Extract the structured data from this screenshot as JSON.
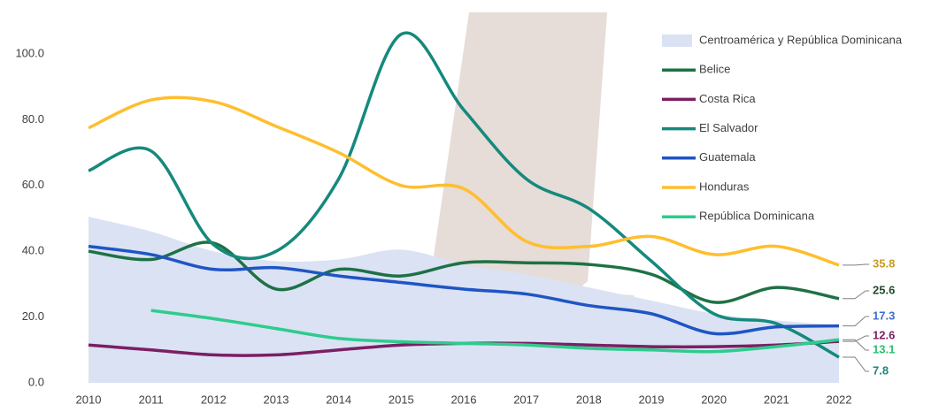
{
  "chart_data": {
    "type": "line",
    "categories": [
      "2010",
      "2011",
      "2012",
      "2013",
      "2014",
      "2015",
      "2016",
      "2017",
      "2018",
      "2019",
      "2020",
      "2021",
      "2022"
    ],
    "ylim": [
      0,
      100
    ],
    "yticks": [
      {
        "value": 0,
        "label": "0.0"
      },
      {
        "value": 20,
        "label": "20.0"
      },
      {
        "value": 40,
        "label": "40.0"
      },
      {
        "value": 60,
        "label": "60.0"
      },
      {
        "value": 80,
        "label": "80.0"
      },
      {
        "value": 100,
        "label": "100.0"
      }
    ],
    "legend": "top-right",
    "series": [
      {
        "name": "Centroamérica y República Dominicana",
        "kind": "area",
        "color": "#dae2f4",
        "values": [
          50.5,
          46,
          40,
          37,
          37.5,
          40.5,
          36,
          33,
          29,
          25,
          21,
          19,
          17.5
        ]
      },
      {
        "name": "Belice",
        "color": "#1e7145",
        "label_color": "#1e4d2b",
        "values": [
          40,
          37.5,
          42.5,
          28.5,
          34.5,
          32.5,
          36.5,
          36.5,
          36,
          33,
          24.5,
          29,
          25.6
        ]
      },
      {
        "name": "Costa Rica",
        "color": "#7b1f63",
        "label_color": "#7b1f63",
        "values": [
          11.5,
          10,
          8.5,
          8.5,
          10,
          11.5,
          12,
          12,
          11.5,
          11,
          11,
          11.5,
          12.6
        ]
      },
      {
        "name": "El Salvador",
        "color": "#15897c",
        "label_color": "#15897c",
        "values": [
          64.5,
          70.5,
          42,
          40,
          62,
          106,
          83,
          62,
          53,
          37,
          21,
          18,
          7.8
        ]
      },
      {
        "name": "Guatemala",
        "color": "#1f55c4",
        "label_color": "#3b6fd1",
        "values": [
          41.5,
          39,
          34.5,
          35,
          32.5,
          30.5,
          28.5,
          27,
          23.5,
          21,
          15,
          17,
          17.3
        ]
      },
      {
        "name": "Honduras",
        "color": "#ffbe2e",
        "label_color": "#c89b20",
        "values": [
          77.5,
          86,
          85.5,
          78,
          70,
          60,
          59,
          43,
          41.5,
          44.5,
          39,
          41.5,
          35.8
        ]
      },
      {
        "name": "República Dominicana",
        "color": "#2ecc8c",
        "label_color": "#2bbf6f",
        "values": [
          null,
          22,
          19.5,
          16.5,
          13.5,
          12.5,
          12,
          11.5,
          10.5,
          10,
          9.5,
          11,
          13.1
        ]
      }
    ]
  }
}
